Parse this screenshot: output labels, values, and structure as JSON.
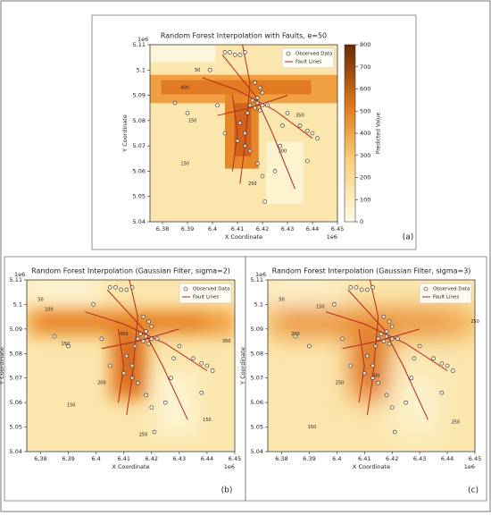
{
  "chart_data": {
    "type": "heatmap-panels",
    "xlabel": "X Coordinate",
    "ylabel": "Y Coordinate",
    "x_offset": "1e6",
    "y_offset": "1e6",
    "xlim": [
      6.375,
      6.45
    ],
    "xticks": [
      6.38,
      6.39,
      6.4,
      6.41,
      6.42,
      6.43,
      6.44,
      6.45
    ],
    "ylim": [
      5.04,
      5.11
    ],
    "yticks": [
      5.04,
      5.05,
      5.06,
      5.07,
      5.08,
      5.09,
      5.1,
      5.11
    ],
    "series": [
      {
        "name": "Observed Data",
        "color": "#ffffff",
        "x": [
          6.399,
          6.405,
          6.407,
          6.409,
          6.411,
          6.413,
          6.417,
          6.419,
          6.42,
          6.418,
          6.416,
          6.418,
          6.42,
          6.417,
          6.415,
          6.419,
          6.422,
          6.414,
          6.411,
          6.413,
          6.41,
          6.413,
          6.415,
          6.418,
          6.42,
          6.425,
          6.427,
          6.43,
          6.435,
          6.438,
          6.44,
          6.442,
          6.385,
          6.39,
          6.402,
          6.405,
          6.438,
          6.421,
          6.428
        ],
        "values": [
          5.1,
          5.107,
          5.107,
          5.106,
          5.106,
          5.107,
          5.095,
          5.093,
          5.091,
          5.089,
          5.088,
          5.087,
          5.086,
          5.085,
          5.086,
          5.084,
          5.086,
          5.083,
          5.079,
          5.075,
          5.072,
          5.07,
          5.068,
          5.063,
          5.058,
          5.06,
          5.07,
          5.083,
          5.078,
          5.076,
          5.075,
          5.073,
          5.087,
          5.083,
          5.086,
          5.075,
          5.064,
          5.048,
          5.078
        ]
      },
      {
        "name": "Fault Lines",
        "color": "#b5271e",
        "x": [
          6.404,
          6.417,
          6.424,
          6.433,
          null,
          6.396,
          6.41,
          6.425,
          6.44,
          null,
          6.412,
          6.415,
          6.413,
          6.411,
          null,
          6.402,
          6.415,
          6.43,
          null,
          6.408,
          6.41,
          6.408
        ],
        "values": [
          5.106,
          5.09,
          5.075,
          5.053,
          null,
          5.097,
          5.092,
          5.084,
          5.073,
          null,
          5.11,
          5.095,
          5.07,
          5.055,
          null,
          5.082,
          5.085,
          5.09,
          null,
          5.09,
          5.075,
          5.06
        ]
      }
    ],
    "panels": [
      {
        "title": "Random Forest Interpolation with Faults, e=50",
        "label": "(a)",
        "colorbar": {
          "label": "Predicted Value",
          "lim": [
            0,
            800
          ],
          "ticks": [
            0,
            100,
            200,
            300,
            400,
            500,
            600,
            700,
            800
          ]
        },
        "contour_labels": {
          "values": [
            50,
            400,
            150,
            150,
            300,
            250,
            350
          ],
          "x": [
            6.394,
            6.389,
            6.392,
            6.389,
            6.428,
            6.416,
            6.435
          ],
          "y": [
            5.1,
            5.093,
            5.08,
            5.063,
            5.068,
            5.055,
            5.082
          ]
        }
      },
      {
        "title": "Random Forest Interpolation (Gaussian Filter, sigma=2)",
        "label": "(b)",
        "contour_labels": {
          "values": [
            50,
            100,
            150,
            200,
            250,
            350,
            450,
            150,
            150
          ],
          "x": [
            6.38,
            6.383,
            6.389,
            6.402,
            6.417,
            6.447,
            6.41,
            6.391,
            6.44
          ],
          "y": [
            5.102,
            5.098,
            5.084,
            5.068,
            5.047,
            5.085,
            5.088,
            5.059,
            5.053
          ]
        }
      },
      {
        "title": "Random Forest Interpolation (Gaussian Filter, sigma=3)",
        "label": "(c)",
        "contour_labels": {
          "values": [
            50,
            150,
            200,
            250,
            250,
            300,
            150,
            250
          ],
          "x": [
            6.38,
            6.394,
            6.385,
            6.401,
            6.45,
            6.414,
            6.391,
            6.443
          ],
          "y": [
            5.102,
            5.099,
            5.088,
            5.068,
            5.093,
            5.071,
            5.05,
            5.052
          ]
        }
      }
    ]
  }
}
